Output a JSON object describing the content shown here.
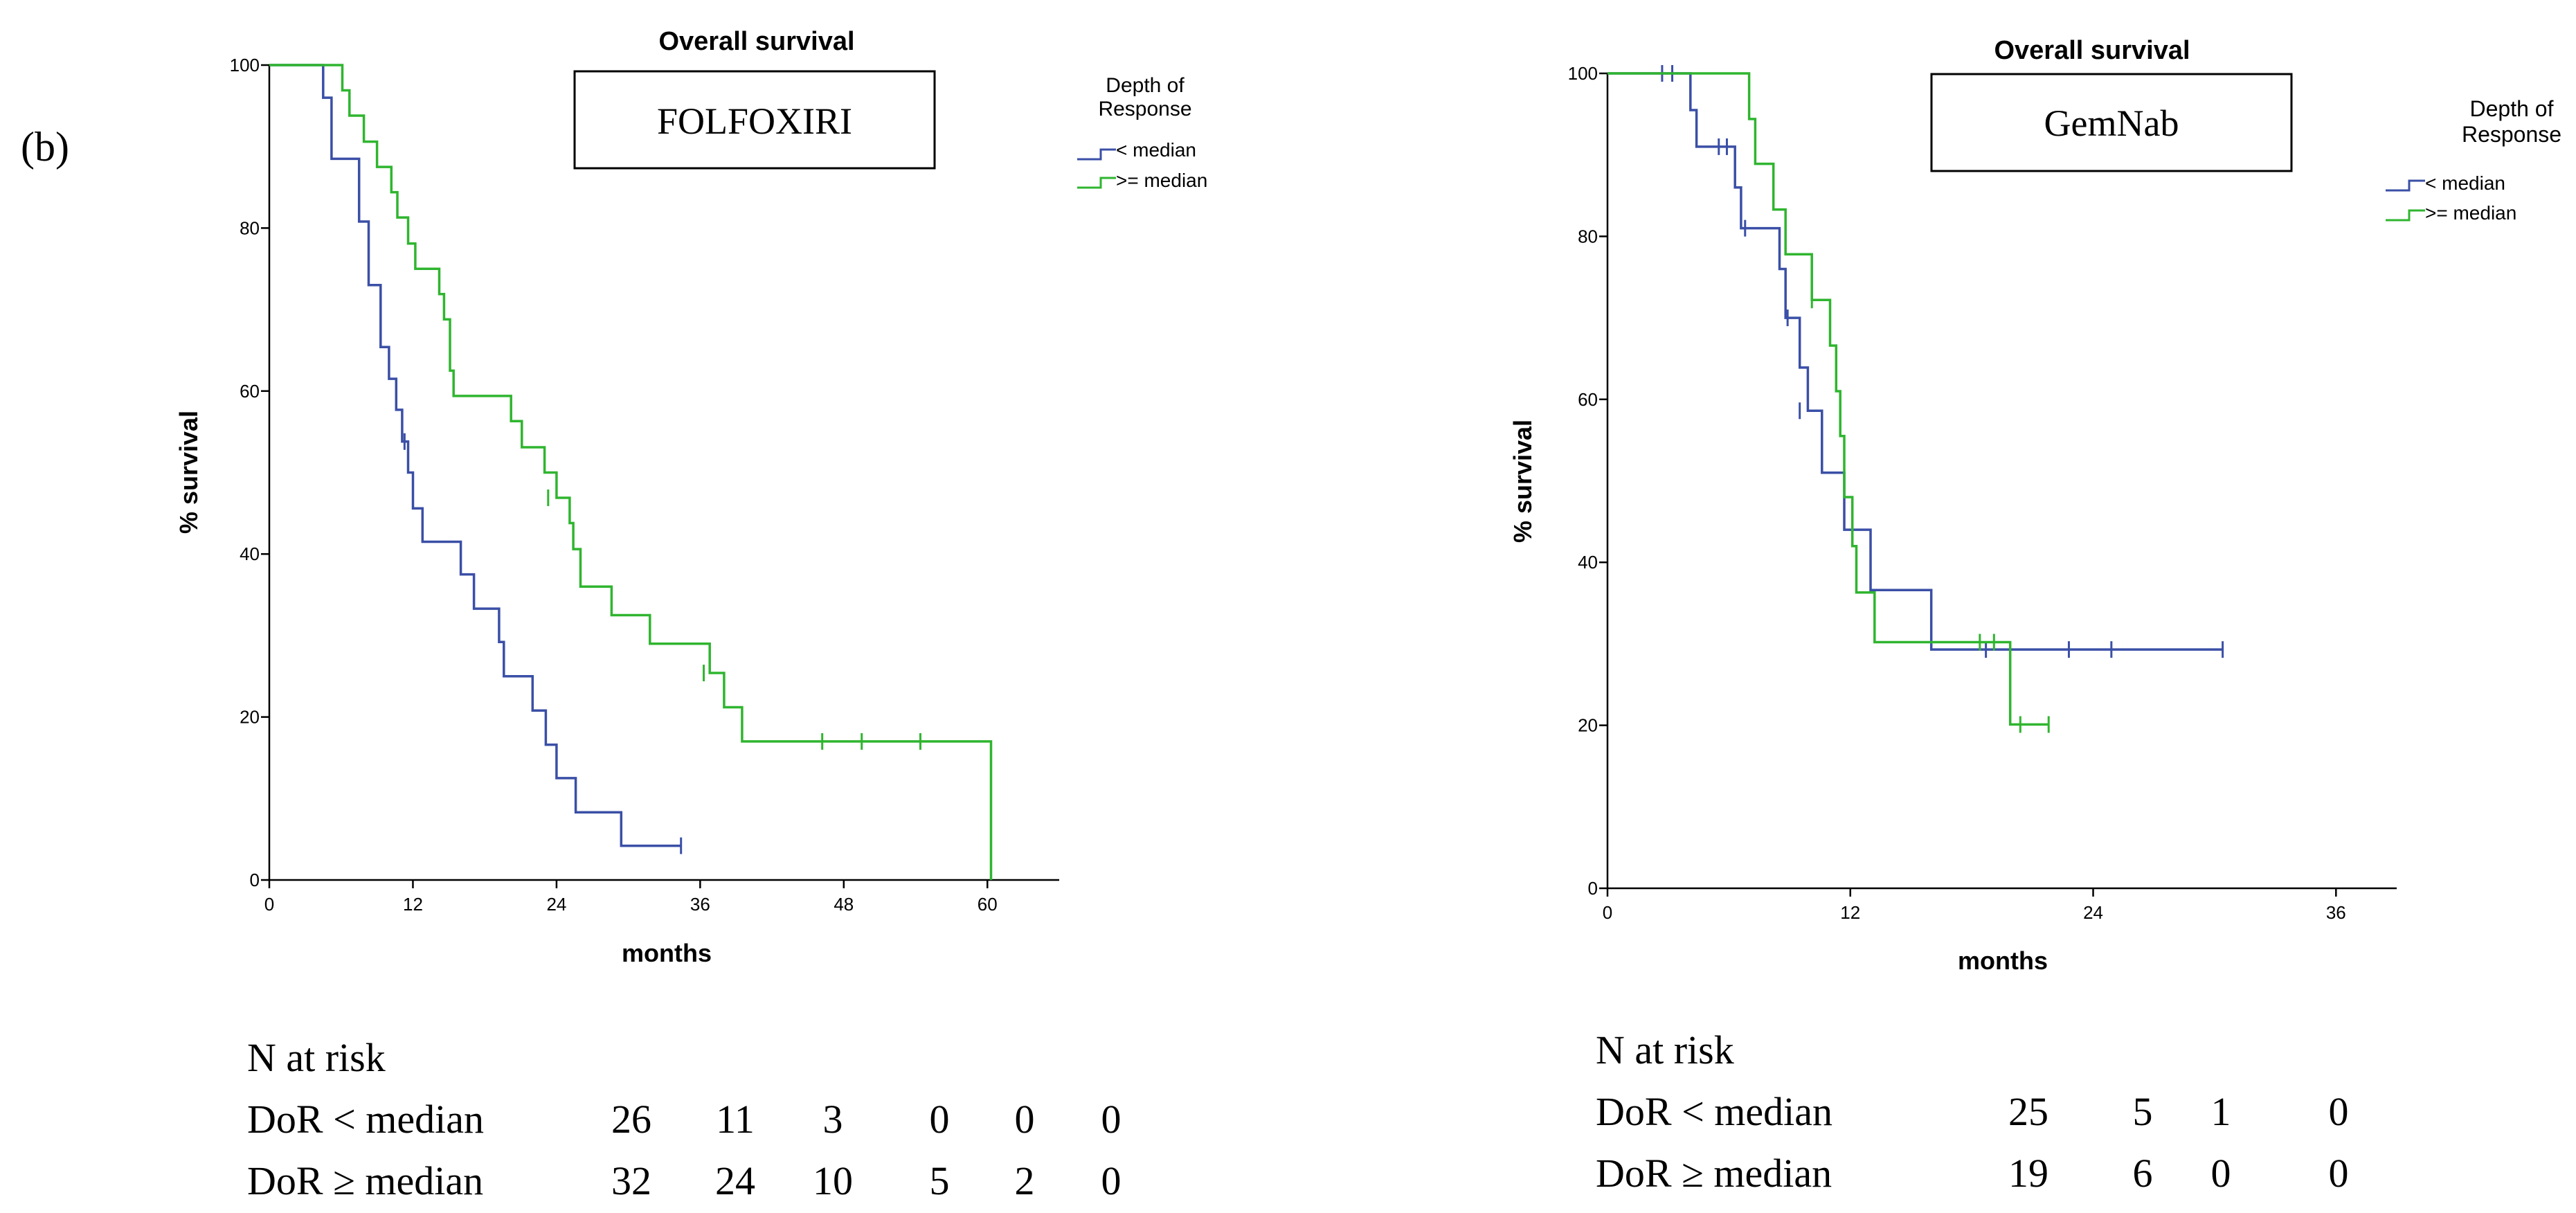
{
  "panel_label": "(b)",
  "legend_title_line1": "Depth of",
  "legend_title_line2": "Response",
  "legend_lt": "< median",
  "legend_ge": ">= median",
  "colors": {
    "lt": "#3a4fa6",
    "ge": "#2fb52f",
    "axis": "#000000"
  },
  "chart_data": [
    {
      "type": "line",
      "subtype": "kaplan-meier",
      "title": "Overall survival",
      "box_label": "FOLFOXIRI",
      "xlabel": "months",
      "ylabel": "% survival",
      "xlim": [
        0,
        66
      ],
      "ylim": [
        0,
        100
      ],
      "xticks": [
        "0",
        "12",
        "24",
        "36",
        "48",
        "60"
      ],
      "xtick_values": [
        0,
        12,
        24,
        36,
        48,
        60
      ],
      "yticks": [
        "0",
        "20",
        "40",
        "60",
        "80",
        "100"
      ],
      "ytick_values": [
        0,
        20,
        40,
        60,
        80,
        100
      ],
      "series": [
        {
          "name": "< median",
          "color": "#3a4fa6",
          "steps": [
            [
              0,
              100
            ],
            [
              4.5,
              96
            ],
            [
              5.2,
              88.5
            ],
            [
              7.5,
              80.8
            ],
            [
              8.3,
              73
            ],
            [
              9.3,
              65.4
            ],
            [
              10,
              61.5
            ],
            [
              10.6,
              57.7
            ],
            [
              11.1,
              53.8
            ],
            [
              11.6,
              50
            ],
            [
              12,
              45.6
            ],
            [
              12.8,
              41.5
            ],
            [
              16,
              37.5
            ],
            [
              17.1,
              33.3
            ],
            [
              19.2,
              29.2
            ],
            [
              19.6,
              25
            ],
            [
              22,
              20.8
            ],
            [
              23.1,
              16.6
            ],
            [
              24,
              12.5
            ],
            [
              25.6,
              8.3
            ],
            [
              29.4,
              4.2
            ],
            [
              34.4,
              4.2
            ]
          ],
          "censored": [
            [
              11.3,
              53.8
            ],
            [
              34.4,
              4.2
            ]
          ]
        },
        {
          "name": ">= median",
          "color": "#2fb52f",
          "steps": [
            [
              0,
              100
            ],
            [
              6.1,
              96.9
            ],
            [
              6.7,
              93.8
            ],
            [
              7.9,
              90.6
            ],
            [
              9,
              87.5
            ],
            [
              10.2,
              84.4
            ],
            [
              10.7,
              81.3
            ],
            [
              11.6,
              78.1
            ],
            [
              12.2,
              75
            ],
            [
              14.2,
              71.9
            ],
            [
              14.6,
              68.8
            ],
            [
              15.1,
              62.5
            ],
            [
              15.4,
              59.4
            ],
            [
              20.2,
              56.3
            ],
            [
              21.1,
              53.1
            ],
            [
              23,
              50
            ],
            [
              24,
              46.9
            ],
            [
              25.1,
              43.8
            ],
            [
              25.4,
              40.6
            ],
            [
              26,
              36
            ],
            [
              28.6,
              32.5
            ],
            [
              31.8,
              29
            ],
            [
              36.8,
              25.4
            ],
            [
              38,
              21.2
            ],
            [
              39.5,
              17
            ],
            [
              60.3,
              17
            ],
            [
              60.3,
              0
            ]
          ],
          "censored": [
            [
              23.3,
              46.9
            ],
            [
              36.3,
              25.4
            ],
            [
              46.2,
              17
            ],
            [
              49.5,
              17
            ],
            [
              54.4,
              17
            ]
          ]
        }
      ],
      "risk_table": {
        "header": "N at risk",
        "rows": [
          {
            "label": "DoR < median",
            "values": [
              "26",
              "11",
              "3",
              "0",
              "0",
              "0"
            ]
          },
          {
            "label": "DoR ≥ median",
            "values": [
              "32",
              "24",
              "10",
              "5",
              "2",
              "0"
            ]
          }
        ]
      }
    },
    {
      "type": "line",
      "subtype": "kaplan-meier",
      "title": "Overall survival",
      "box_label": "GemNab",
      "xlabel": "months",
      "ylabel": "% survival",
      "xlim": [
        0,
        39
      ],
      "ylim": [
        0,
        100
      ],
      "xticks": [
        "0",
        "12",
        "24",
        "36"
      ],
      "xtick_values": [
        0,
        12,
        24,
        36
      ],
      "yticks": [
        "0",
        "20",
        "40",
        "60",
        "80",
        "100"
      ],
      "ytick_values": [
        0,
        20,
        40,
        60,
        80,
        100
      ],
      "series": [
        {
          "name": "< median",
          "color": "#3a4fa6",
          "steps": [
            [
              0,
              100
            ],
            [
              4.1,
              95.5
            ],
            [
              4.4,
              91
            ],
            [
              6.3,
              86
            ],
            [
              6.6,
              81
            ],
            [
              8.5,
              76
            ],
            [
              8.8,
              70
            ],
            [
              9.5,
              63.9
            ],
            [
              9.9,
              58.6
            ],
            [
              10.6,
              51
            ],
            [
              11.7,
              44
            ],
            [
              12.9,
              44
            ],
            [
              13,
              36.6
            ],
            [
              16,
              29.3
            ],
            [
              30.4,
              29.3
            ]
          ],
          "censored": [
            [
              2.7,
              100
            ],
            [
              3.2,
              100
            ],
            [
              5.5,
              91
            ],
            [
              5.9,
              91
            ],
            [
              6.8,
              81
            ],
            [
              8.9,
              70
            ],
            [
              9.5,
              58.6
            ],
            [
              18.7,
              29.3
            ],
            [
              22.8,
              29.3
            ],
            [
              24.9,
              29.3
            ],
            [
              30.4,
              29.3
            ]
          ]
        },
        {
          "name": ">= median",
          "color": "#2fb52f",
          "steps": [
            [
              0,
              100
            ],
            [
              7,
              94.4
            ],
            [
              7.3,
              88.9
            ],
            [
              8.2,
              83.3
            ],
            [
              8.8,
              77.8
            ],
            [
              10.1,
              72.2
            ],
            [
              11,
              66.6
            ],
            [
              11.3,
              61
            ],
            [
              11.5,
              55.5
            ],
            [
              11.7,
              48
            ],
            [
              12.1,
              42
            ],
            [
              12.3,
              36.3
            ],
            [
              13.2,
              30.2
            ],
            [
              19.7,
              30.2
            ],
            [
              19.9,
              20.1
            ],
            [
              21.8,
              20.1
            ]
          ],
          "censored": [
            [
              10.1,
              72.2
            ],
            [
              18.4,
              30.2
            ],
            [
              19.1,
              30.2
            ],
            [
              20.4,
              20.1
            ],
            [
              21.8,
              20.1
            ]
          ]
        }
      ],
      "risk_table": {
        "header": "N at risk",
        "rows": [
          {
            "label": "DoR < median",
            "values": [
              "25",
              "5",
              "1",
              "0"
            ]
          },
          {
            "label": "DoR ≥ median",
            "values": [
              "19",
              "6",
              "0",
              "0"
            ]
          }
        ]
      }
    }
  ]
}
